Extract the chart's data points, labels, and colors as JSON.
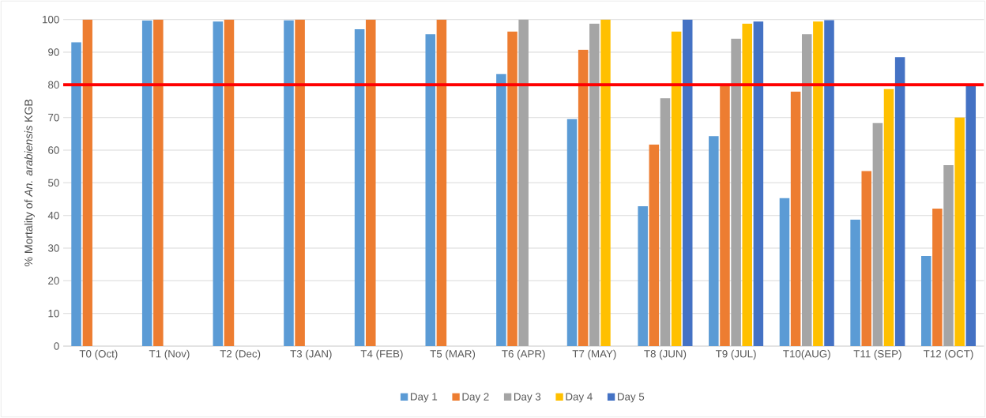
{
  "chart_data": {
    "type": "bar",
    "ylabel": "% Mortality of *An. arabiensis* KGB",
    "categories": [
      "T0 (Oct)",
      "T1 (Nov)",
      "T2 (Dec)",
      "T3 (JAN)",
      "T4 (FEB)",
      "T5 (MAR)",
      "T6 (APR)",
      "T7 (MAY)",
      "T8 (JUN)",
      "T9 (JUL)",
      "T10(AUG)",
      "T11 (SEP)",
      "T12 (OCT)"
    ],
    "series": [
      {
        "name": "Day 1",
        "color": "#5b9bd5",
        "values": [
          93,
          99.7,
          99.4,
          99.8,
          97,
          95.5,
          83.3,
          69.5,
          42.8,
          64.3,
          45.3,
          38.7,
          27.6
        ]
      },
      {
        "name": "Day 2",
        "color": "#ed7d31",
        "values": [
          100,
          100,
          100,
          100,
          100,
          100,
          96.3,
          90.7,
          61.7,
          79.7,
          77.9,
          53.6,
          42.1
        ]
      },
      {
        "name": "Day 3",
        "color": "#a5a5a5",
        "values": [
          null,
          null,
          null,
          null,
          null,
          null,
          100,
          98.7,
          75.9,
          94.1,
          95.5,
          68.3,
          55.4
        ]
      },
      {
        "name": "Day 4",
        "color": "#ffc000",
        "values": [
          null,
          null,
          null,
          null,
          null,
          null,
          null,
          100,
          96.3,
          98.7,
          99.4,
          78.7,
          70.0
        ]
      },
      {
        "name": "Day 5",
        "color": "#4472c4",
        "values": [
          null,
          null,
          null,
          null,
          null,
          null,
          null,
          null,
          100,
          99.4,
          99.8,
          88.5,
          80.2
        ]
      }
    ],
    "ylim": [
      0,
      100
    ],
    "yticks": [
      0,
      10,
      20,
      30,
      40,
      50,
      60,
      70,
      80,
      90,
      100
    ],
    "grid": "y",
    "legend": "bottom",
    "ref_lines": [
      {
        "axis": "y",
        "value": 80,
        "color": "#ff0000"
      }
    ]
  }
}
